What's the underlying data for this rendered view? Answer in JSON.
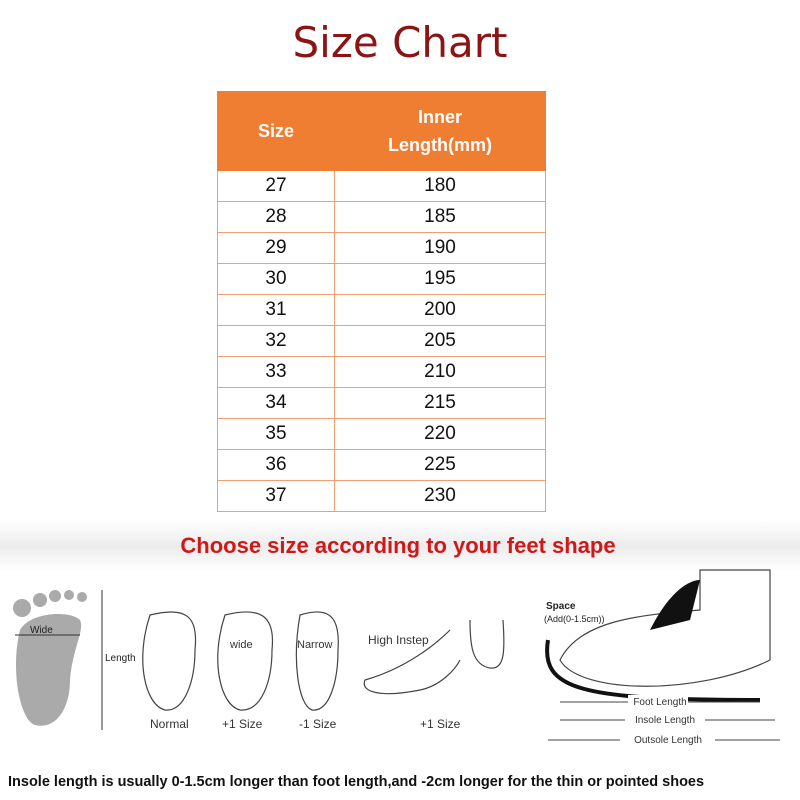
{
  "header": {
    "title": "Size Chart"
  },
  "table": {
    "columns": [
      "Size",
      "Inner Length(mm)"
    ],
    "rows": [
      [
        27,
        180
      ],
      [
        28,
        185
      ],
      [
        29,
        190
      ],
      [
        30,
        195
      ],
      [
        31,
        200
      ],
      [
        32,
        205
      ],
      [
        33,
        210
      ],
      [
        34,
        215
      ],
      [
        35,
        220
      ],
      [
        36,
        225
      ],
      [
        37,
        230
      ]
    ]
  },
  "banner": "Choose size according to your feet shape",
  "illustrations": {
    "foot_width": "Wide",
    "foot_length": "Length",
    "wide_label": "wide",
    "narrow_label": "Narrow",
    "high_instep": "High Instep",
    "normal_caption": "Normal",
    "wide_caption": "+1 Size",
    "narrow_caption": "-1 Size",
    "instep_caption": "+1 Size",
    "space": "Space",
    "space_note": "(Add(0-1.5cm))",
    "foot_length_dim": "Foot Length",
    "insole_length": "Insole Length",
    "outsole_length": "Outsole Length"
  },
  "footer": "Insole length is usually 0-1.5cm longer than foot length,and -2cm longer for the thin or pointed shoes"
}
